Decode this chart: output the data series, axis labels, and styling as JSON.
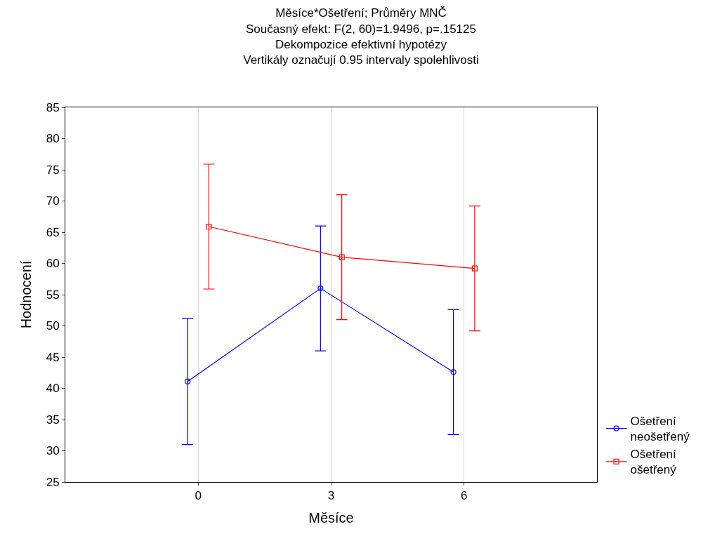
{
  "chart_data": {
    "type": "line",
    "title": "Měsíce*Ošetření; Průměry MNČ",
    "subtitle": "Současný efekt: F(2, 60)=1.9496, p=.15125\nDekompozice efektivní hypotézy\nVertikály označují 0.95 intervaly spolehlivosti",
    "xlabel": "Měsíce",
    "ylabel": "Hodnocení",
    "categories": [
      "0",
      "3",
      "6"
    ],
    "series": [
      {
        "name": "Ošetření neošetřený",
        "color": "#0000ff",
        "marker": "circle",
        "values": [
          41.1,
          56.0,
          42.6
        ],
        "errors": [
          10.1,
          10.0,
          10.0
        ]
      },
      {
        "name": "Ošetření ošetřený",
        "color": "#ff0000",
        "marker": "square",
        "values": [
          65.9,
          61.0,
          59.2
        ],
        "errors": [
          10.0,
          10.0,
          10.0
        ]
      }
    ],
    "ylim": [
      25,
      85
    ],
    "yticks": [
      25,
      30,
      35,
      40,
      45,
      50,
      55,
      60,
      65,
      70,
      75,
      80,
      85
    ],
    "grid": "x",
    "legend": "bottom right",
    "line_style": "solid"
  }
}
